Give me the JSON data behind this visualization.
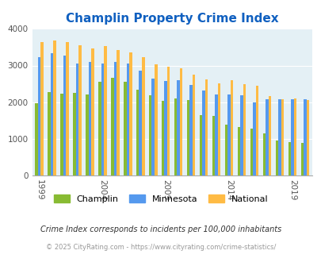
{
  "title": "Champlin Property Crime Index",
  "title_color": "#1060c0",
  "title_fontsize": 11,
  "bg_color": "#e4f0f5",
  "years": [
    1999,
    2000,
    2001,
    2002,
    2003,
    2004,
    2005,
    2006,
    2007,
    2008,
    2009,
    2010,
    2011,
    2012,
    2013,
    2014,
    2015,
    2016,
    2017,
    2018,
    2019,
    2020
  ],
  "champlin": [
    1980,
    2270,
    2230,
    2250,
    2200,
    2560,
    2670,
    2560,
    2350,
    2180,
    2030,
    2100,
    2050,
    1650,
    1620,
    1380,
    1320,
    1290,
    1140,
    960,
    920,
    900
  ],
  "minnesota": [
    3220,
    3340,
    3280,
    3050,
    3090,
    3060,
    3090,
    3050,
    2870,
    2640,
    2570,
    2590,
    2460,
    2320,
    2220,
    2200,
    2180,
    2000,
    2080,
    2090,
    2090,
    2090
  ],
  "national": [
    3640,
    3680,
    3640,
    3560,
    3460,
    3540,
    3420,
    3360,
    3230,
    3040,
    2970,
    2920,
    2750,
    2620,
    2510,
    2600,
    2490,
    2440,
    2160,
    2090,
    2100,
    2050
  ],
  "champlin_color": "#88bb33",
  "minnesota_color": "#5599ee",
  "national_color": "#ffbb44",
  "ylim": [
    0,
    4000
  ],
  "yticks": [
    0,
    1000,
    2000,
    3000,
    4000
  ],
  "xtick_years": [
    1999,
    2004,
    2009,
    2014,
    2019
  ],
  "footnote1": "Crime Index corresponds to incidents per 100,000 inhabitants",
  "footnote2": "© 2025 CityRating.com - https://www.cityrating.com/crime-statistics/",
  "footnote1_color": "#333333",
  "footnote2_color": "#999999"
}
